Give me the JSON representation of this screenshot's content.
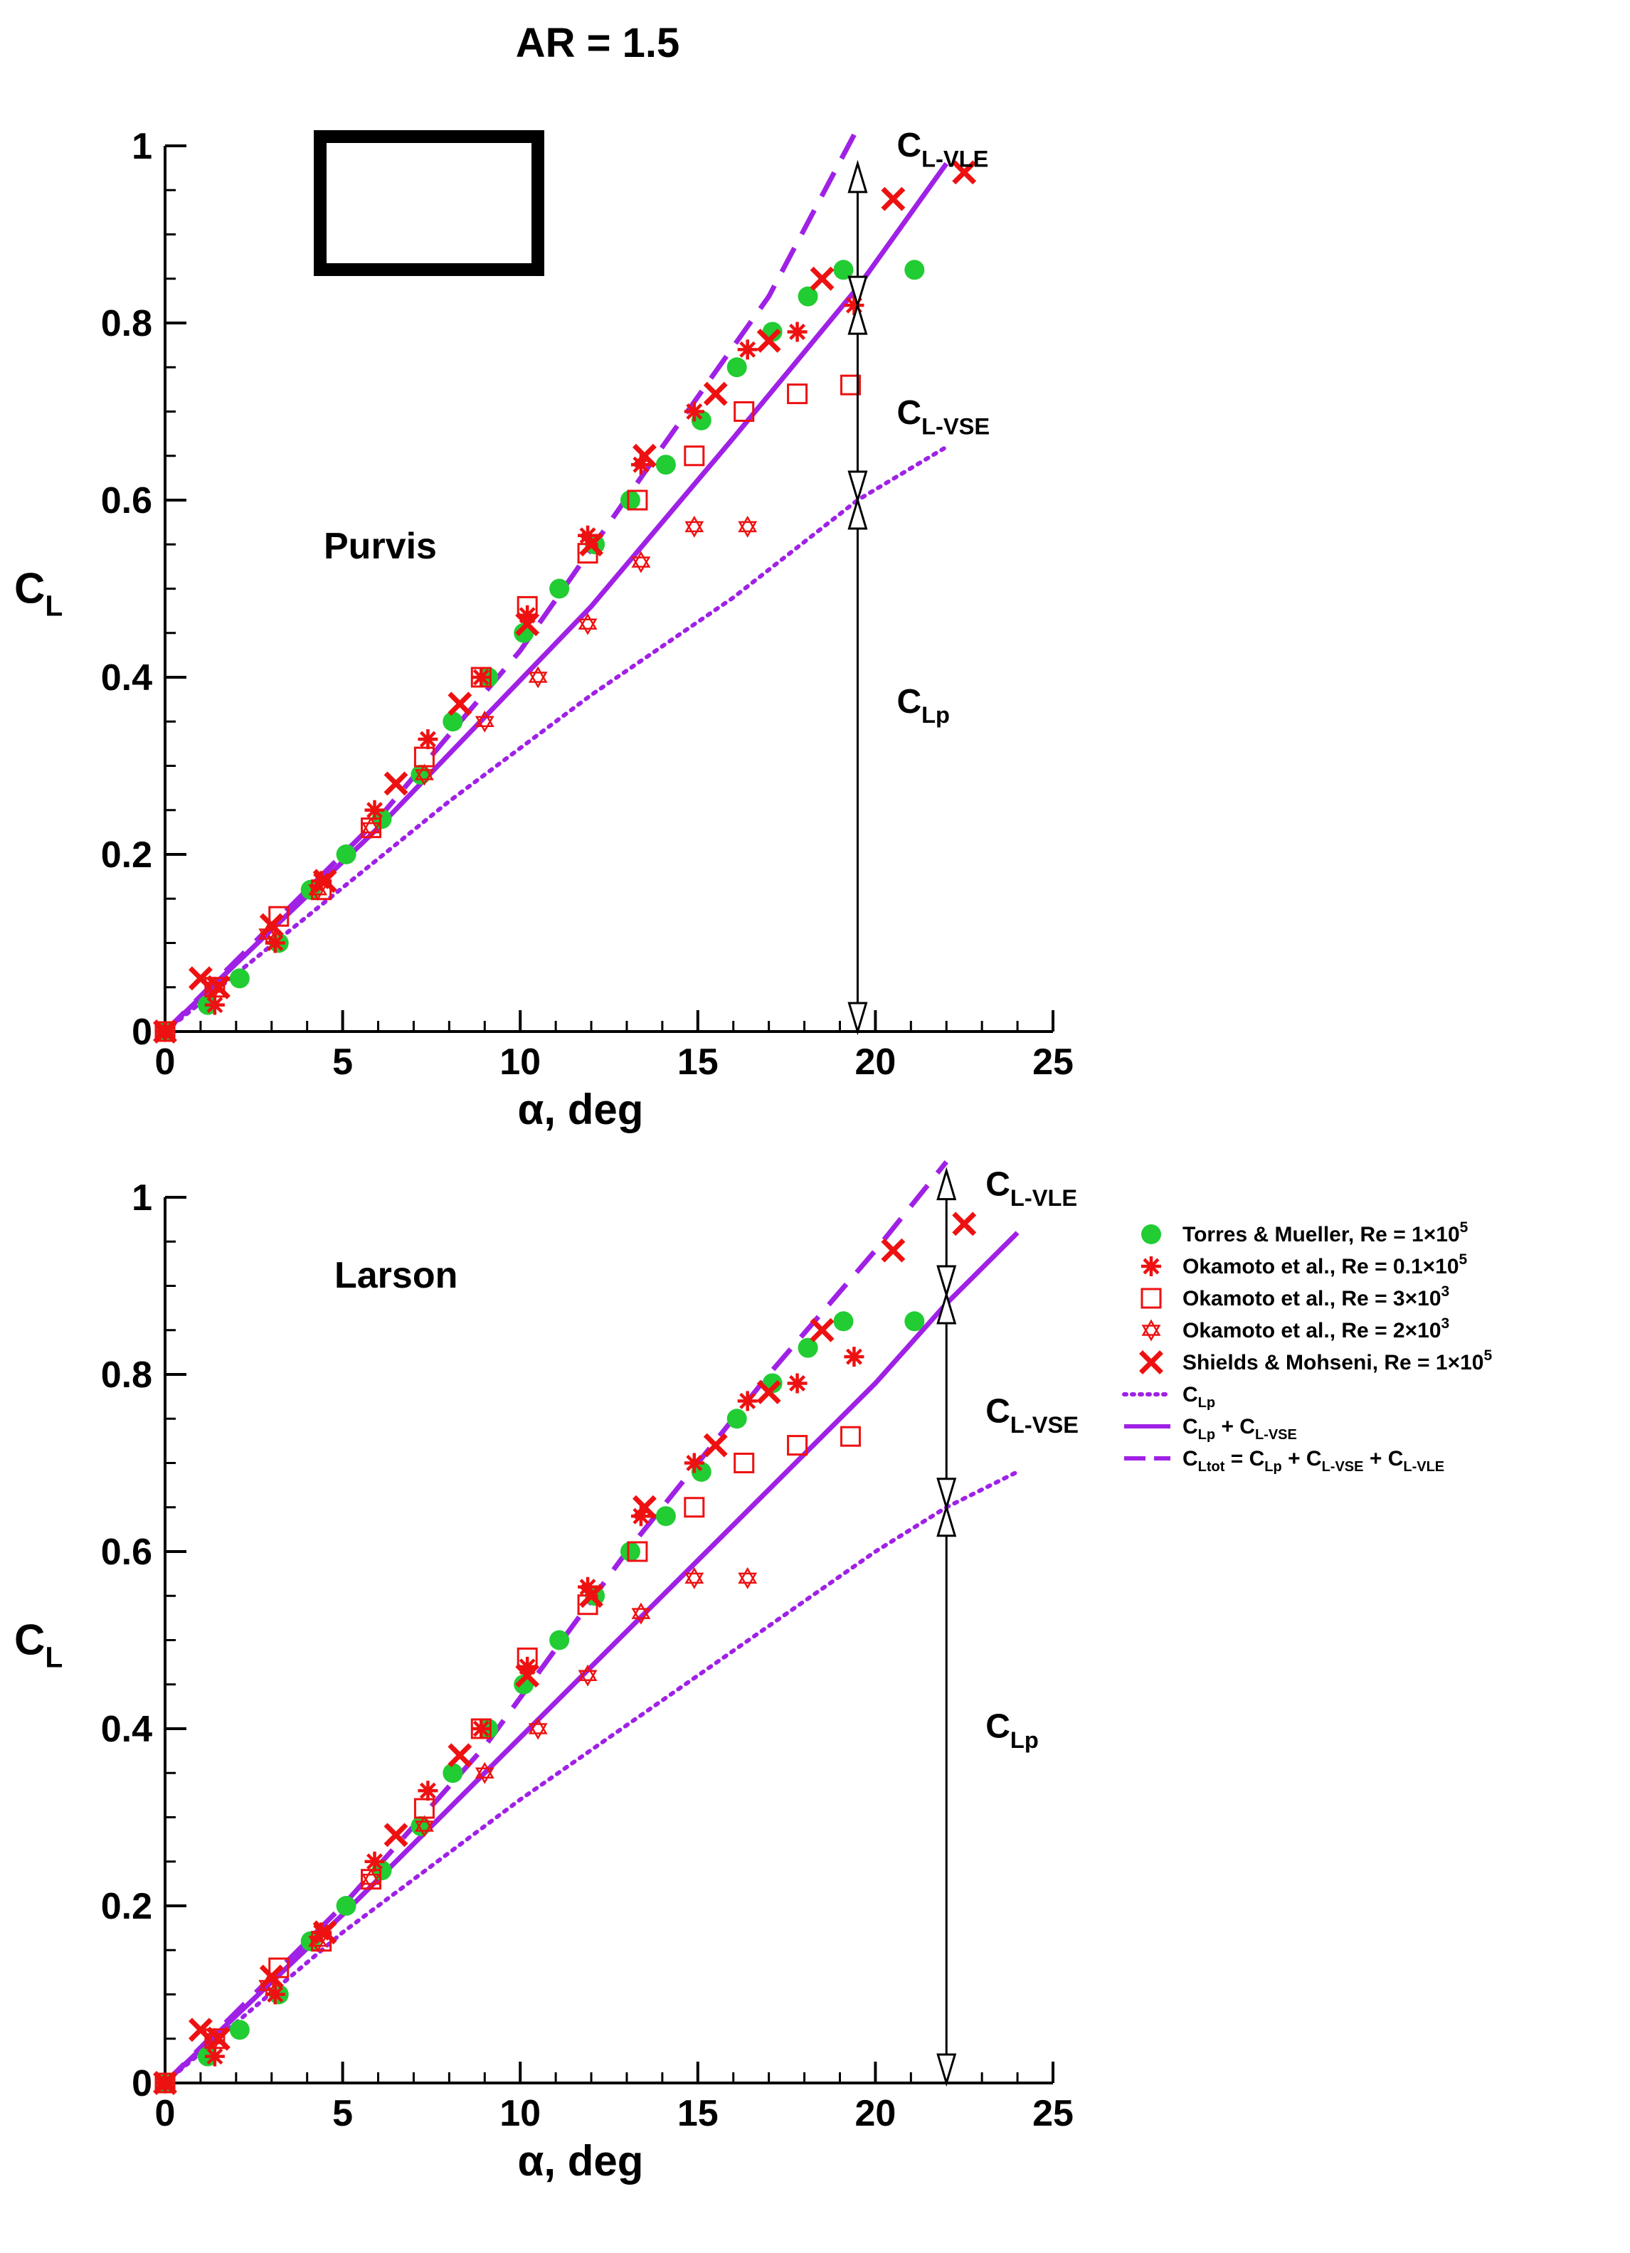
{
  "figure_title": "AR = 1.5",
  "colors": {
    "torres": "#22cc33",
    "okamoto": "#ee1111",
    "theory": "#a021e6",
    "annot": "#000000"
  },
  "legend": [
    {
      "key": "torres",
      "label": "Torres & Mueller, Re = 1×10",
      "sup": "5"
    },
    {
      "key": "ok01",
      "label": "Okamoto et al., Re = 0.1×10",
      "sup": "5"
    },
    {
      "key": "ok3",
      "label": "Okamoto et al., Re = 3×10",
      "sup": "3"
    },
    {
      "key": "ok2",
      "label": "Okamoto et al., Re = 2×10",
      "sup": "3"
    },
    {
      "key": "shields",
      "label": "Shields & Mohseni, Re = 1×10",
      "sup": "5"
    },
    {
      "key": "clp",
      "label": "C",
      "sub": "Lp"
    },
    {
      "key": "clpvse",
      "parts": [
        [
          "C",
          ""
        ],
        [
          "Lp",
          "sub"
        ],
        [
          " + C",
          ""
        ],
        [
          "L-VSE",
          "sub"
        ]
      ]
    },
    {
      "key": "cltot",
      "parts": [
        [
          "C",
          ""
        ],
        [
          "Ltot",
          "sub"
        ],
        [
          " = C",
          ""
        ],
        [
          "Lp",
          "sub"
        ],
        [
          " + C",
          ""
        ],
        [
          "L-VSE",
          "sub"
        ],
        [
          " + C",
          ""
        ],
        [
          "L-VLE",
          "sub"
        ]
      ]
    }
  ],
  "annotations": {
    "cl_vle": {
      "main": "C",
      "sub": "L-VLE"
    },
    "cl_vse": {
      "main": "C",
      "sub": "L-VSE"
    },
    "cl_p": {
      "main": "C",
      "sub": "Lp"
    }
  },
  "chart_data": [
    {
      "type": "scatter",
      "title": "Purvis",
      "xlabel": "α, deg",
      "ylabel": "C",
      "ylabel_sub": "L",
      "xlim": [
        0,
        25
      ],
      "ylim": [
        0,
        1
      ],
      "xticks": [
        0,
        5,
        10,
        15,
        20,
        25
      ],
      "yticks": [
        0,
        0.2,
        0.4,
        0.6,
        0.8,
        1
      ],
      "ytick_labels": [
        "0",
        "0.2",
        "0.4",
        "0.6",
        "0.8",
        "1"
      ],
      "planform_inset": true,
      "arrow_alpha": 19.5,
      "arrow_levels": {
        "clp": 0.6,
        "clpvse": 0.82,
        "cltot": 0.98
      },
      "series": [
        {
          "key": "torres",
          "name": "Torres & Mueller, Re = 1×10^5",
          "marker": "circle",
          "points": [
            [
              0,
              0
            ],
            [
              1.2,
              0.03
            ],
            [
              2.1,
              0.06
            ],
            [
              3.2,
              0.1
            ],
            [
              4.1,
              0.16
            ],
            [
              5.1,
              0.2
            ],
            [
              6.1,
              0.24
            ],
            [
              7.2,
              0.29
            ],
            [
              8.1,
              0.35
            ],
            [
              9.1,
              0.4
            ],
            [
              10.1,
              0.45
            ],
            [
              11.1,
              0.5
            ],
            [
              12.1,
              0.55
            ],
            [
              13.1,
              0.6
            ],
            [
              14.1,
              0.64
            ],
            [
              15.1,
              0.69
            ],
            [
              16.1,
              0.75
            ],
            [
              17.1,
              0.79
            ],
            [
              18.1,
              0.83
            ],
            [
              19.1,
              0.86
            ],
            [
              21.1,
              0.86
            ]
          ]
        },
        {
          "key": "ok01",
          "name": "Okamoto et al., Re = 0.1×10^5",
          "marker": "asterisk",
          "points": [
            [
              0,
              0
            ],
            [
              1.4,
              0.03
            ],
            [
              3.1,
              0.1
            ],
            [
              4.4,
              0.17
            ],
            [
              5.9,
              0.25
            ],
            [
              7.4,
              0.33
            ],
            [
              8.9,
              0.4
            ],
            [
              10.2,
              0.47
            ],
            [
              11.9,
              0.56
            ],
            [
              13.4,
              0.64
            ],
            [
              14.9,
              0.7
            ],
            [
              16.4,
              0.77
            ],
            [
              17.8,
              0.79
            ],
            [
              19.4,
              0.82
            ]
          ]
        },
        {
          "key": "ok3",
          "name": "Okamoto et al., Re = 3×10^3",
          "marker": "square",
          "points": [
            [
              0,
              0
            ],
            [
              1.4,
              0.05
            ],
            [
              3.2,
              0.13
            ],
            [
              4.4,
              0.16
            ],
            [
              5.8,
              0.23
            ],
            [
              7.3,
              0.31
            ],
            [
              8.9,
              0.4
            ],
            [
              10.2,
              0.48
            ],
            [
              11.9,
              0.54
            ],
            [
              13.3,
              0.6
            ],
            [
              14.9,
              0.65
            ],
            [
              16.3,
              0.7
            ],
            [
              17.8,
              0.72
            ],
            [
              19.3,
              0.73
            ]
          ]
        },
        {
          "key": "ok2",
          "name": "Okamoto et al., Re = 2×10^3",
          "marker": "star6",
          "points": [
            [
              0,
              0
            ],
            [
              1.4,
              0.05
            ],
            [
              2.9,
              0.11
            ],
            [
              4.3,
              0.16
            ],
            [
              5.8,
              0.23
            ],
            [
              7.3,
              0.29
            ],
            [
              9.0,
              0.35
            ],
            [
              10.5,
              0.4
            ],
            [
              11.9,
              0.46
            ],
            [
              13.4,
              0.53
            ],
            [
              14.9,
              0.57
            ],
            [
              16.4,
              0.57
            ]
          ]
        },
        {
          "key": "shields",
          "name": "Shields & Mohseni, Re = 1×10^5",
          "marker": "cross",
          "points": [
            [
              0,
              0
            ],
            [
              1.0,
              0.06
            ],
            [
              1.5,
              0.05
            ],
            [
              3.0,
              0.12
            ],
            [
              4.5,
              0.17
            ],
            [
              6.5,
              0.28
            ],
            [
              8.3,
              0.37
            ],
            [
              10.2,
              0.46
            ],
            [
              12.0,
              0.55
            ],
            [
              13.5,
              0.65
            ],
            [
              15.5,
              0.72
            ],
            [
              17.0,
              0.78
            ],
            [
              18.5,
              0.85
            ],
            [
              20.5,
              0.94
            ],
            [
              22.5,
              0.97
            ]
          ]
        }
      ],
      "curves": [
        {
          "key": "clp",
          "name": "C_Lp",
          "style": "dotted",
          "points": [
            [
              0,
              0
            ],
            [
              4,
              0.13
            ],
            [
              8,
              0.26
            ],
            [
              12,
              0.38
            ],
            [
              16,
              0.49
            ],
            [
              19.5,
              0.6
            ],
            [
              22,
              0.66
            ]
          ]
        },
        {
          "key": "clpvse",
          "name": "C_Lp + C_L-VSE",
          "style": "solid",
          "points": [
            [
              0,
              0
            ],
            [
              6,
              0.23
            ],
            [
              12,
              0.48
            ],
            [
              16,
              0.67
            ],
            [
              19.5,
              0.84
            ],
            [
              22,
              0.98
            ]
          ]
        },
        {
          "key": "cltot",
          "name": "C_Ltot = C_Lp + C_L-VSE + C_L-VLE",
          "style": "dashed",
          "points": [
            [
              0,
              0
            ],
            [
              6,
              0.24
            ],
            [
              10,
              0.43
            ],
            [
              14,
              0.66
            ],
            [
              17,
              0.83
            ],
            [
              19.5,
              1.02
            ]
          ]
        }
      ]
    },
    {
      "type": "scatter",
      "title": "Larson",
      "xlabel": "α, deg",
      "ylabel": "C",
      "ylabel_sub": "L",
      "xlim": [
        0,
        25
      ],
      "ylim": [
        0,
        1
      ],
      "xticks": [
        0,
        5,
        10,
        15,
        20,
        25
      ],
      "yticks": [
        0,
        0.2,
        0.4,
        0.6,
        0.8,
        1
      ],
      "ytick_labels": [
        "0",
        "0.2",
        "0.4",
        "0.6",
        "0.8",
        "1"
      ],
      "planform_inset": false,
      "arrow_alpha": 22,
      "arrow_levels": {
        "clp": 0.65,
        "clpvse": 0.89,
        "cltot": 1.03
      },
      "series": [
        {
          "key": "torres",
          "name": "Torres & Mueller, Re = 1×10^5",
          "marker": "circle",
          "points": [
            [
              0,
              0
            ],
            [
              1.2,
              0.03
            ],
            [
              2.1,
              0.06
            ],
            [
              3.2,
              0.1
            ],
            [
              4.1,
              0.16
            ],
            [
              5.1,
              0.2
            ],
            [
              6.1,
              0.24
            ],
            [
              7.2,
              0.29
            ],
            [
              8.1,
              0.35
            ],
            [
              9.1,
              0.4
            ],
            [
              10.1,
              0.45
            ],
            [
              11.1,
              0.5
            ],
            [
              12.1,
              0.55
            ],
            [
              13.1,
              0.6
            ],
            [
              14.1,
              0.64
            ],
            [
              15.1,
              0.69
            ],
            [
              16.1,
              0.75
            ],
            [
              17.1,
              0.79
            ],
            [
              18.1,
              0.83
            ],
            [
              19.1,
              0.86
            ],
            [
              21.1,
              0.86
            ]
          ]
        },
        {
          "key": "ok01",
          "name": "Okamoto et al., Re = 0.1×10^5",
          "marker": "asterisk",
          "points": [
            [
              0,
              0
            ],
            [
              1.4,
              0.03
            ],
            [
              3.1,
              0.1
            ],
            [
              4.4,
              0.17
            ],
            [
              5.9,
              0.25
            ],
            [
              7.4,
              0.33
            ],
            [
              8.9,
              0.4
            ],
            [
              10.2,
              0.47
            ],
            [
              11.9,
              0.56
            ],
            [
              13.4,
              0.64
            ],
            [
              14.9,
              0.7
            ],
            [
              16.4,
              0.77
            ],
            [
              17.8,
              0.79
            ],
            [
              19.4,
              0.82
            ]
          ]
        },
        {
          "key": "ok3",
          "name": "Okamoto et al., Re = 3×10^3",
          "marker": "square",
          "points": [
            [
              0,
              0
            ],
            [
              1.4,
              0.05
            ],
            [
              3.2,
              0.13
            ],
            [
              4.4,
              0.16
            ],
            [
              5.8,
              0.23
            ],
            [
              7.3,
              0.31
            ],
            [
              8.9,
              0.4
            ],
            [
              10.2,
              0.48
            ],
            [
              11.9,
              0.54
            ],
            [
              13.3,
              0.6
            ],
            [
              14.9,
              0.65
            ],
            [
              16.3,
              0.7
            ],
            [
              17.8,
              0.72
            ],
            [
              19.3,
              0.73
            ]
          ]
        },
        {
          "key": "ok2",
          "name": "Okamoto et al., Re = 2×10^3",
          "marker": "star6",
          "points": [
            [
              0,
              0
            ],
            [
              1.4,
              0.05
            ],
            [
              2.9,
              0.11
            ],
            [
              4.3,
              0.16
            ],
            [
              5.8,
              0.23
            ],
            [
              7.3,
              0.29
            ],
            [
              9.0,
              0.35
            ],
            [
              10.5,
              0.4
            ],
            [
              11.9,
              0.46
            ],
            [
              13.4,
              0.53
            ],
            [
              14.9,
              0.57
            ],
            [
              16.4,
              0.57
            ]
          ]
        },
        {
          "key": "shields",
          "name": "Shields & Mohseni, Re = 1×10^5",
          "marker": "cross",
          "points": [
            [
              0,
              0
            ],
            [
              1.0,
              0.06
            ],
            [
              1.5,
              0.05
            ],
            [
              3.0,
              0.12
            ],
            [
              4.5,
              0.17
            ],
            [
              6.5,
              0.28
            ],
            [
              8.3,
              0.37
            ],
            [
              10.2,
              0.46
            ],
            [
              12.0,
              0.55
            ],
            [
              13.5,
              0.65
            ],
            [
              15.5,
              0.72
            ],
            [
              17.0,
              0.78
            ],
            [
              18.5,
              0.85
            ],
            [
              20.5,
              0.94
            ],
            [
              22.5,
              0.97
            ]
          ]
        }
      ],
      "curves": [
        {
          "key": "clp",
          "name": "C_Lp",
          "style": "dotted",
          "points": [
            [
              0,
              0
            ],
            [
              5,
              0.17
            ],
            [
              10,
              0.32
            ],
            [
              15,
              0.46
            ],
            [
              20,
              0.6
            ],
            [
              22,
              0.65
            ],
            [
              24,
              0.69
            ]
          ]
        },
        {
          "key": "clpvse",
          "name": "C_Lp + C_L-VSE",
          "style": "solid",
          "points": [
            [
              0,
              0
            ],
            [
              5,
              0.19
            ],
            [
              10,
              0.39
            ],
            [
              15,
              0.59
            ],
            [
              20,
              0.79
            ],
            [
              22,
              0.88
            ],
            [
              24,
              0.96
            ]
          ]
        },
        {
          "key": "cltot",
          "name": "C_Ltot = C_Lp + C_L-VSE + C_L-VLE",
          "style": "dashed",
          "points": [
            [
              0,
              0
            ],
            [
              5,
              0.2
            ],
            [
              9,
              0.38
            ],
            [
              13,
              0.6
            ],
            [
              17,
              0.8
            ],
            [
              20,
              0.94
            ],
            [
              22,
              1.04
            ]
          ]
        }
      ]
    }
  ]
}
